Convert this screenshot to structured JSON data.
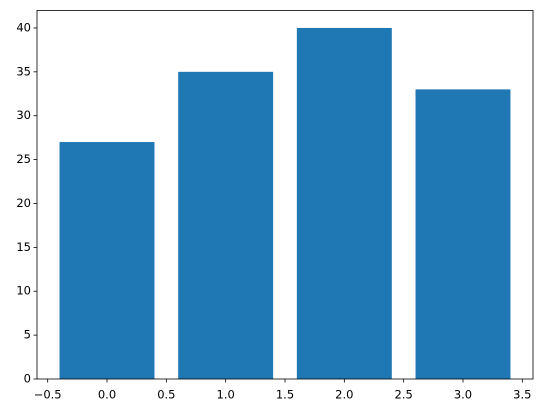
{
  "chart_data": {
    "type": "bar",
    "x": [
      0,
      1,
      2,
      3
    ],
    "values": [
      27,
      35,
      40,
      33
    ],
    "color": "#1f77b4",
    "bar_width": 0.8,
    "xlim": [
      -0.59,
      3.59
    ],
    "xticks": [
      {
        "value": -0.5,
        "label": "−0.5"
      },
      {
        "value": 0,
        "label": "0.0"
      },
      0.5,
      {
        "value": 1,
        "label": "1.0"
      },
      1.5,
      {
        "value": 2,
        "label": "2.0"
      },
      2.5,
      {
        "value": 3,
        "label": "3.0"
      },
      3.5
    ],
    "ylim": [
      0,
      42
    ],
    "yticks": [
      0,
      5,
      10,
      15,
      20,
      25,
      30,
      35,
      40
    ],
    "grid": false
  }
}
